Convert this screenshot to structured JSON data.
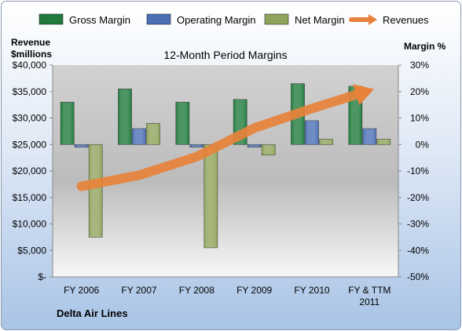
{
  "chart_data": {
    "type": "bar",
    "title": "12-Month Period Margins",
    "company": "Delta Air Lines",
    "left_axis_label": [
      "Revenue",
      "$millions"
    ],
    "right_axis_label": "Margin %",
    "left_ticks": [
      "$40,000",
      "$35,000",
      "$30,000",
      "$25,000",
      "$20,000",
      "$15,000",
      "$10,000",
      "$5,000",
      "$-"
    ],
    "right_ticks": [
      "30%",
      "20%",
      "10%",
      "0%",
      "-10%",
      "-20%",
      "-30%",
      "-40%",
      "-50%"
    ],
    "ylim_revenue": [
      0,
      40000
    ],
    "ylim_margin": [
      -50,
      30
    ],
    "categories": [
      [
        "FY 2006"
      ],
      [
        "FY 2007"
      ],
      [
        "FY 2008"
      ],
      [
        "FY 2009"
      ],
      [
        "FY 2010"
      ],
      [
        "FY & TTM",
        "2011"
      ]
    ],
    "series": [
      {
        "name": "Gross Margin",
        "axis": "right",
        "color": "#1f7a3c",
        "values": [
          16,
          21,
          16,
          17,
          23,
          22
        ]
      },
      {
        "name": "Operating Margin",
        "axis": "right",
        "color": "#4a6fb5",
        "values": [
          -1,
          6,
          -1,
          -1,
          9,
          6
        ]
      },
      {
        "name": "Net Margin",
        "axis": "right",
        "color": "#8fa35a",
        "values": [
          -35,
          8,
          -39,
          -4,
          2,
          2
        ]
      },
      {
        "name": "Revenues",
        "axis": "left",
        "type": "line",
        "color": "#e8823a",
        "values": [
          17100,
          19200,
          22700,
          28100,
          31800,
          35200
        ]
      }
    ],
    "legend_position": "top",
    "grid": false
  }
}
